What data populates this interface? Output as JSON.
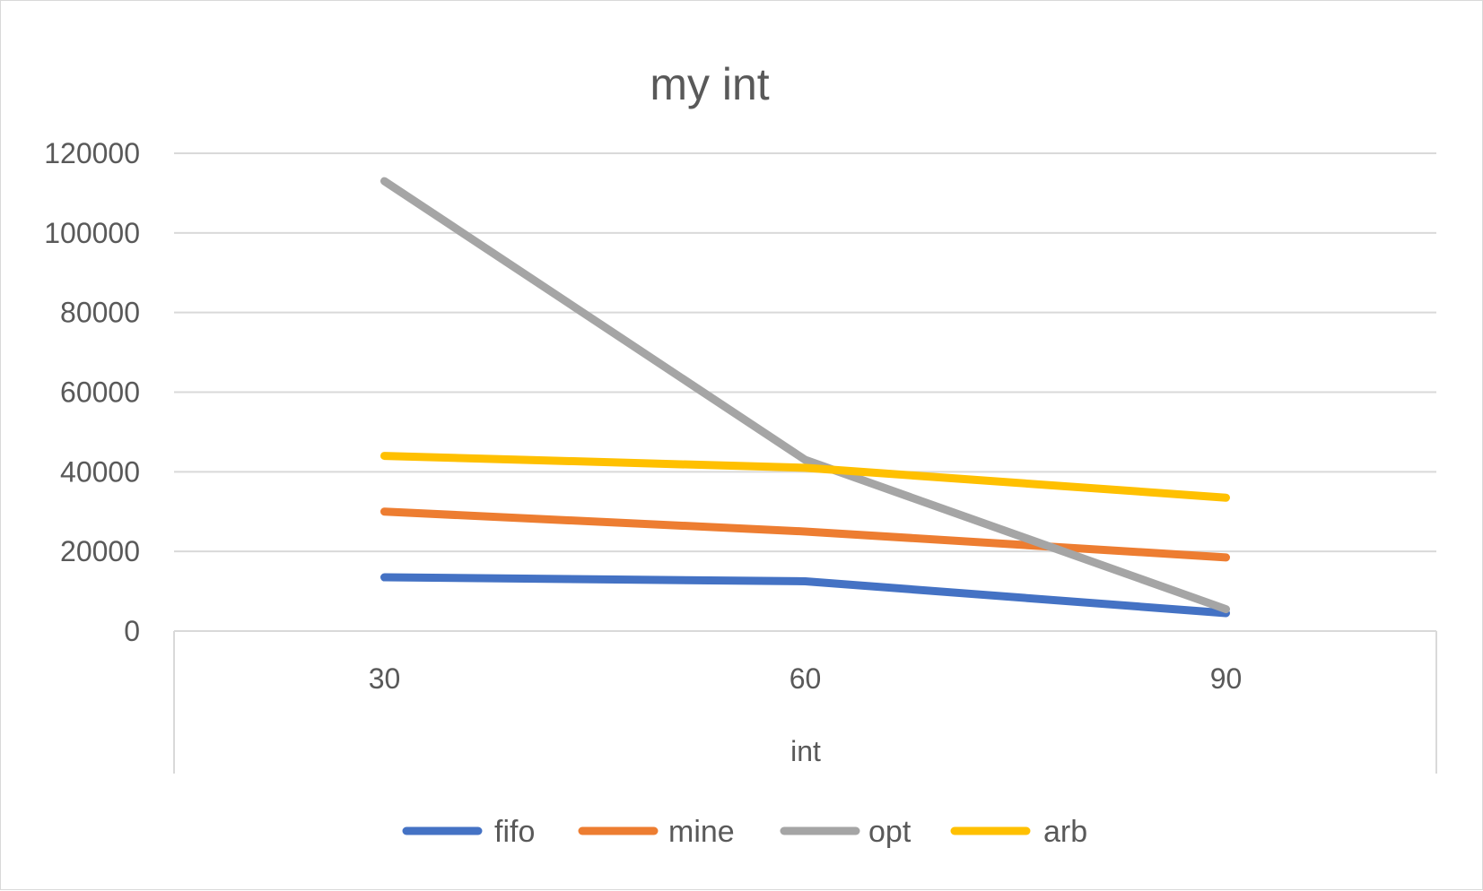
{
  "chart_data": {
    "type": "line",
    "title": "my int",
    "xlabel": "int",
    "ylabel": "",
    "categories": [
      "30",
      "60",
      "90"
    ],
    "ylim": [
      0,
      120000
    ],
    "yticks": [
      0,
      20000,
      40000,
      60000,
      80000,
      100000,
      120000
    ],
    "grid": true,
    "legend_position": "bottom",
    "series": [
      {
        "name": "fifo",
        "color": "#4472C4",
        "values": [
          13500,
          12500,
          4500
        ]
      },
      {
        "name": "mine",
        "color": "#ED7D31",
        "values": [
          30000,
          25000,
          18500
        ]
      },
      {
        "name": "opt",
        "color": "#A5A5A5",
        "values": [
          113000,
          43000,
          5500
        ]
      },
      {
        "name": "arb",
        "color": "#FFC000",
        "values": [
          44000,
          41000,
          33500
        ]
      }
    ]
  }
}
